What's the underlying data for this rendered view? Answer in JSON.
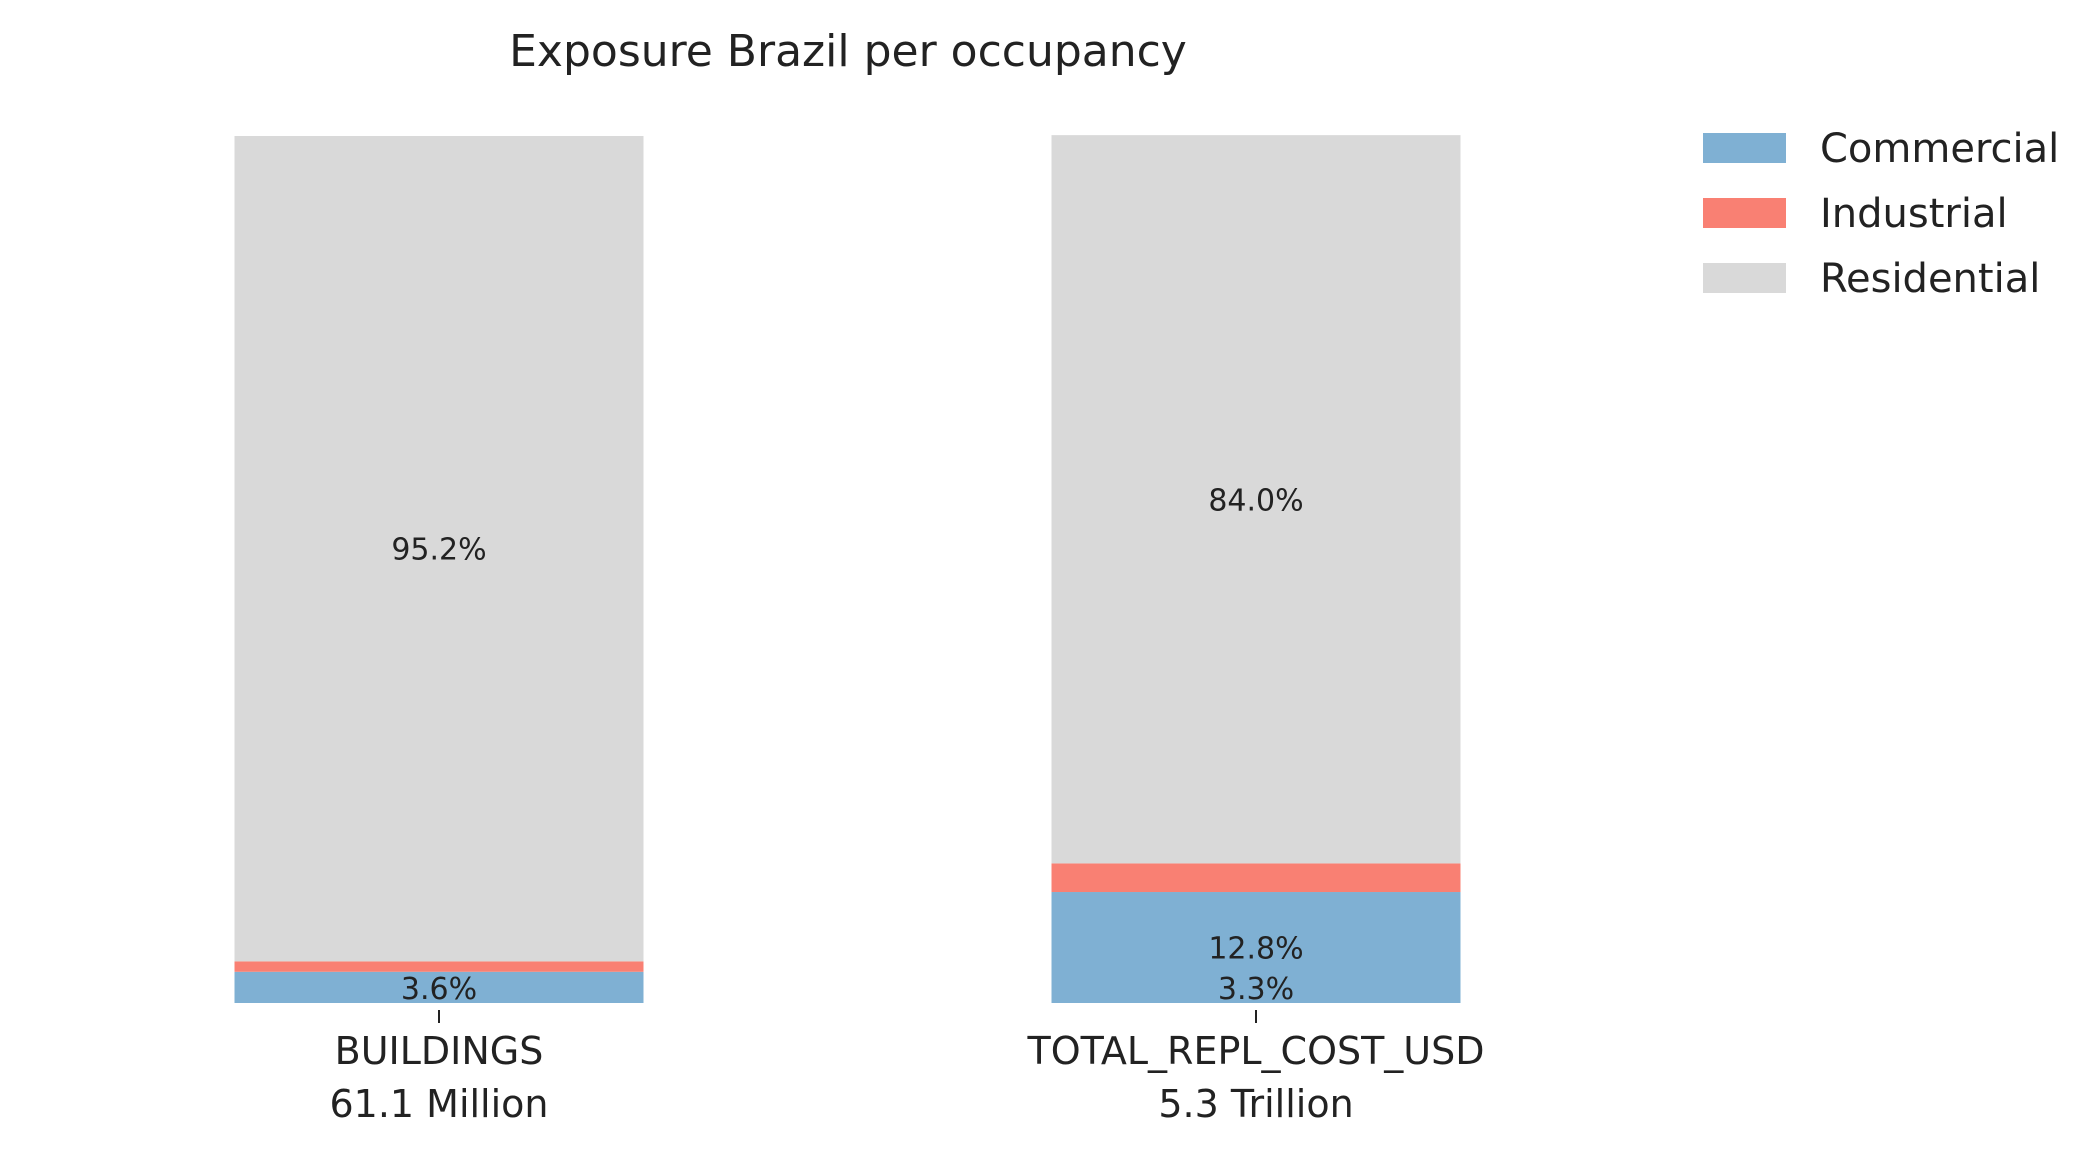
{
  "chart_data": {
    "type": "bar",
    "stacked": true,
    "title": "Exposure Brazil per occupancy",
    "categories": [
      "BUILDINGS",
      "TOTAL_REPL_COST_USD"
    ],
    "category_totals": [
      "61.1 Million",
      "5.3 Trillion"
    ],
    "series": [
      {
        "name": "Commercial",
        "color": "#7fb0d3",
        "values": [
          3.6,
          12.8
        ],
        "labels": [
          "3.6%",
          "12.8%"
        ]
      },
      {
        "name": "Industrial",
        "color": "#f98073",
        "values": [
          1.2,
          3.3
        ],
        "labels": [
          "",
          "3.3%"
        ]
      },
      {
        "name": "Residential",
        "color": "#d9d9d9",
        "values": [
          95.2,
          84.0
        ],
        "labels": [
          "95.2%",
          "84.0%"
        ]
      }
    ],
    "ylim": [
      0,
      100
    ],
    "grid": false,
    "legend_position": "top-right"
  }
}
